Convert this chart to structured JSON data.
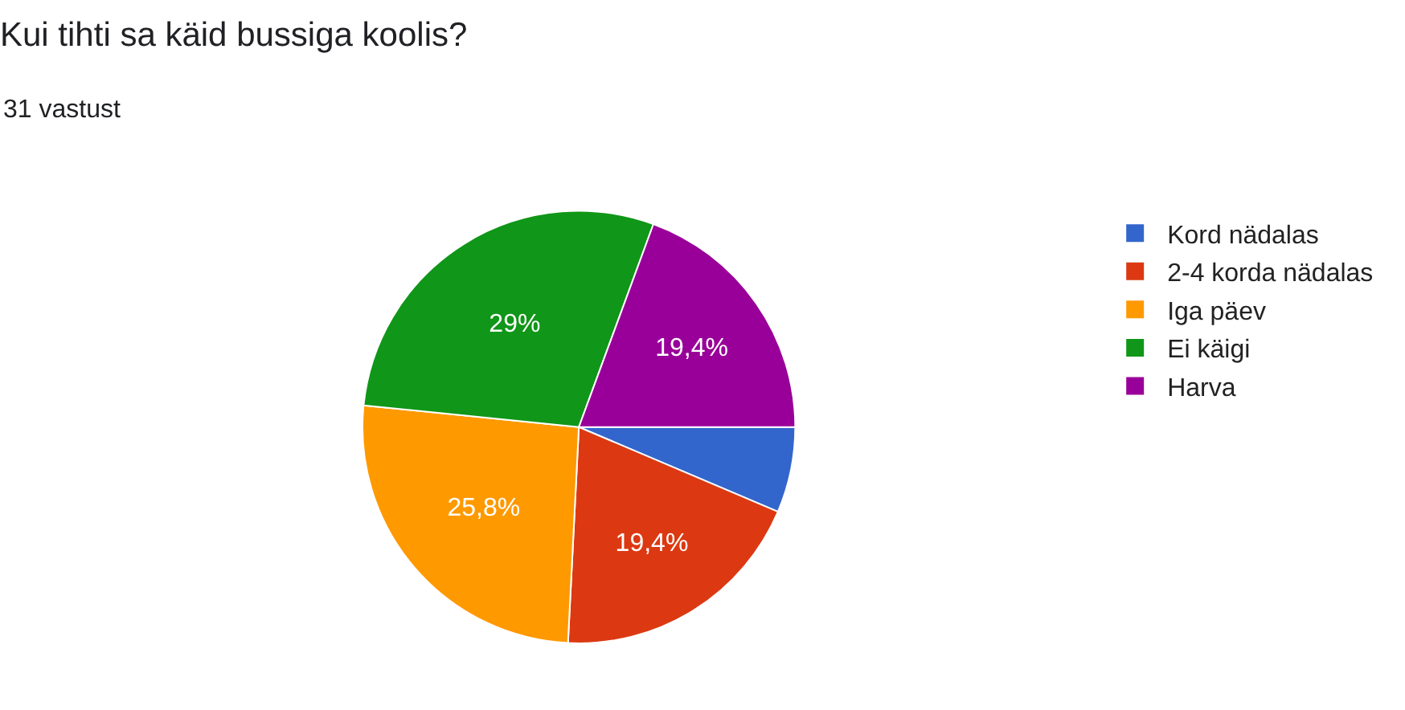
{
  "chart_data": {
    "type": "pie",
    "title": "Kui tihti sa käid bussiga koolis?",
    "subtitle": "31 vastust",
    "categories": [
      "Kord nädalas",
      "2-4 korda nädalas",
      "Iga päev",
      "Ei käigi",
      "Harva"
    ],
    "values": [
      6.4,
      19.4,
      25.8,
      29,
      19.4
    ],
    "colors": [
      "#3366cc",
      "#dc3912",
      "#ff9900",
      "#109618",
      "#990099"
    ],
    "value_labels": [
      null,
      "19,4%",
      "25,8%",
      "29%",
      "19,4%"
    ],
    "legend": "right"
  }
}
